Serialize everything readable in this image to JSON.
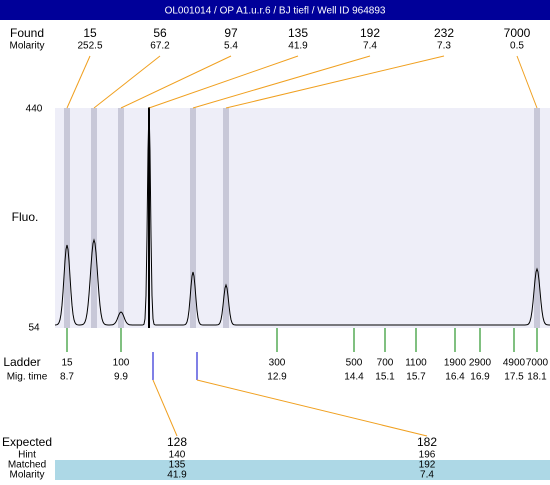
{
  "header": {
    "title": "OL001014 / OP A1.u.r.6 / BJ tiefl / Well ID 964893"
  },
  "found": {
    "label": "Found",
    "sub_label": "Molarity",
    "peaks": [
      {
        "size": 15,
        "molarity": 252.5
      },
      {
        "size": 56,
        "molarity": 67.2
      },
      {
        "size": 97,
        "molarity": 5.4
      },
      {
        "size": 135,
        "molarity": 41.9
      },
      {
        "size": 192,
        "molarity": 7.4
      },
      {
        "size": 232,
        "molarity": 7.3
      },
      {
        "size": 7000,
        "molarity": 0.5
      }
    ]
  },
  "plot": {
    "y_label": "Fluo.",
    "y_top": 440,
    "y_bottom": 54
  },
  "ladder": {
    "label": "Ladder",
    "sub_label": "Mig. time",
    "items": [
      {
        "size": 15,
        "time": 8.7
      },
      {
        "size": 100,
        "time": 9.9
      },
      {
        "size": 300,
        "time": 12.9
      },
      {
        "size": 500,
        "time": 14.4
      },
      {
        "size": 700,
        "time": 15.1
      },
      {
        "size": 1100,
        "time": 15.7
      },
      {
        "size": 1900,
        "time": 16.4
      },
      {
        "size": 2900,
        "time": 16.9
      },
      {
        "size": 4900,
        "time": 17.5
      },
      {
        "size": 7000,
        "time": 18.1
      }
    ]
  },
  "expected": {
    "label": "Expected",
    "row_labels": [
      "Hint",
      "Matched",
      "Molarity"
    ],
    "columns": [
      {
        "expected": 128,
        "hint": 140,
        "matched": 135,
        "molarity": 41.9
      },
      {
        "expected": 182,
        "hint": 196,
        "matched": 192,
        "molarity": 7.4
      }
    ]
  }
}
